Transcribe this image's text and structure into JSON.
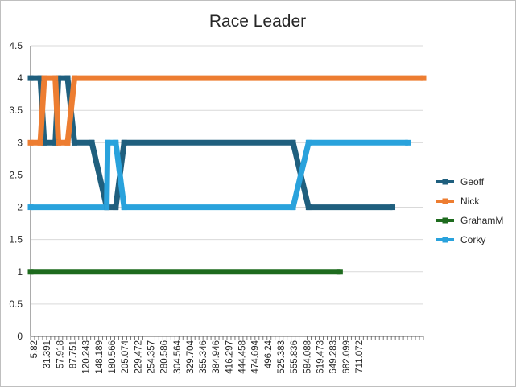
{
  "chart_data": {
    "type": "line",
    "title": "Race Leader",
    "xlabel": "",
    "ylabel": "",
    "ylim": [
      0,
      4.5
    ],
    "yticks": [
      "0",
      "0.5",
      "1",
      "1.5",
      "2",
      "2.5",
      "3",
      "3.5",
      "4",
      "4.5"
    ],
    "x_tick_labels": [
      "5.82",
      "31.391",
      "57.918",
      "87.751",
      "120.243",
      "148.189",
      "180.566",
      "205.074",
      "229.472",
      "254.357",
      "280.586",
      "304.564",
      "329.704",
      "355.346",
      "384.946",
      "416.297",
      "444.458",
      "474.694",
      "496.24",
      "525.383",
      "555.836",
      "584.088",
      "619.473",
      "649.283",
      "682.099",
      "711.072"
    ],
    "grid": "horizontal",
    "legend_position": "right",
    "series": [
      {
        "name": "Geoff",
        "color": "#1f5f7e",
        "points": [
          [
            5.82,
            4
          ],
          [
            24,
            4
          ],
          [
            31.391,
            3
          ],
          [
            52,
            3
          ],
          [
            57.918,
            4
          ],
          [
            75,
            4
          ],
          [
            87.751,
            3
          ],
          [
            120.243,
            3
          ],
          [
            148.189,
            2
          ],
          [
            165,
            2
          ],
          [
            180.566,
            3
          ],
          [
            496.24,
            3
          ],
          [
            525.383,
            2
          ],
          [
            682.099,
            2
          ]
        ]
      },
      {
        "name": "Nick",
        "color": "#ed7d31",
        "points": [
          [
            5.82,
            3
          ],
          [
            24,
            3
          ],
          [
            31.391,
            4
          ],
          [
            52,
            4
          ],
          [
            57.918,
            3
          ],
          [
            75,
            3
          ],
          [
            87.751,
            4
          ],
          [
            740,
            4
          ]
        ]
      },
      {
        "name": "GrahamM",
        "color": "#1e6b1e",
        "points": [
          [
            5.82,
            1
          ],
          [
            584.088,
            1
          ]
        ]
      },
      {
        "name": "Corky",
        "color": "#29a2dc",
        "points": [
          [
            5.82,
            2
          ],
          [
            148.189,
            2
          ],
          [
            150,
            3
          ],
          [
            165,
            3
          ],
          [
            180.566,
            2
          ],
          [
            496.24,
            2
          ],
          [
            525.383,
            3
          ],
          [
            711.072,
            3
          ]
        ]
      }
    ]
  }
}
